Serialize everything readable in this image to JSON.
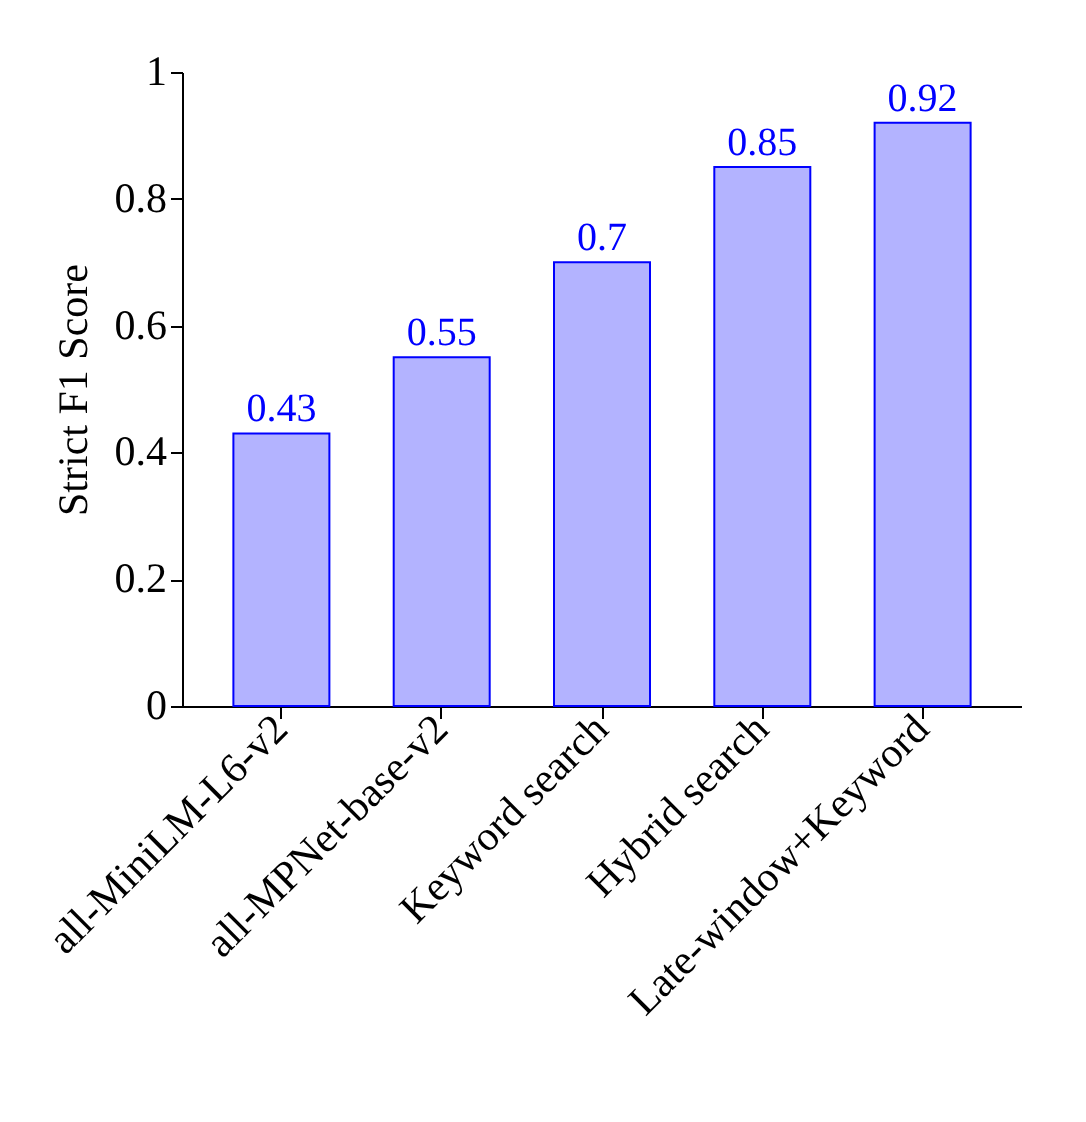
{
  "chart_data": {
    "type": "bar",
    "ylabel": "Strict F1 Score",
    "categories": [
      "all-MiniLM-L6-v2",
      "all-MPNet-base-v2",
      "Keyword search",
      "Hybrid search",
      "Late-window+Keyword"
    ],
    "values": [
      0.43,
      0.55,
      0.7,
      0.85,
      0.92
    ],
    "color": "#b3b3ff",
    "ylim": [
      0,
      1
    ],
    "yticks": [
      0,
      0.2,
      0.4,
      0.6,
      0.8,
      1
    ],
    "data_labels": true,
    "grid": false
  }
}
